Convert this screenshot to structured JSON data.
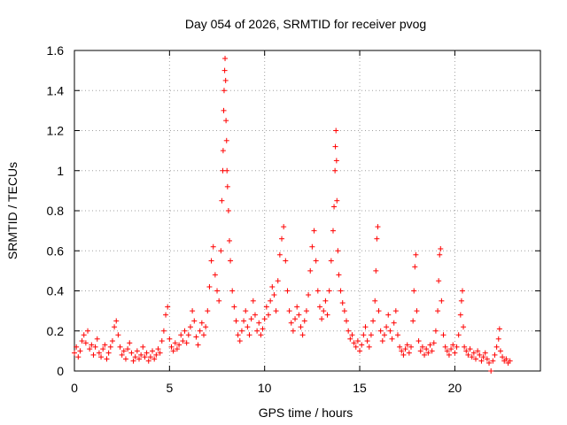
{
  "chart_data": {
    "type": "scatter",
    "title": "Day 054 of 2026, SRMTID for receiver pvog",
    "xlabel": "GPS time / hours",
    "ylabel": "SRMTID / TECUs",
    "xlim": [
      0,
      24.5
    ],
    "ylim": [
      0,
      1.6
    ],
    "xticks": [
      0,
      5,
      10,
      15,
      20
    ],
    "xtick_labels": [
      "0",
      "5",
      "10",
      "15",
      "20"
    ],
    "yticks": [
      0,
      0.2,
      0.4,
      0.6,
      0.8,
      1.0,
      1.2,
      1.4,
      1.6
    ],
    "ytick_labels": [
      "0",
      "0.2",
      "0.4",
      "0.6",
      "0.8",
      "1",
      "1.2",
      "1.4",
      "1.6"
    ],
    "grid": true,
    "marker": "+",
    "color": "#ff0000",
    "series": [
      {
        "name": "SRMTID",
        "points": [
          [
            0.0,
            0.09
          ],
          [
            0.1,
            0.12
          ],
          [
            0.2,
            0.07
          ],
          [
            0.3,
            0.1
          ],
          [
            0.4,
            0.15
          ],
          [
            0.5,
            0.18
          ],
          [
            0.6,
            0.14
          ],
          [
            0.7,
            0.2
          ],
          [
            0.8,
            0.11
          ],
          [
            0.9,
            0.13
          ],
          [
            1.0,
            0.08
          ],
          [
            1.1,
            0.12
          ],
          [
            1.2,
            0.16
          ],
          [
            1.3,
            0.09
          ],
          [
            1.4,
            0.07
          ],
          [
            1.5,
            0.11
          ],
          [
            1.6,
            0.13
          ],
          [
            1.7,
            0.06
          ],
          [
            1.8,
            0.09
          ],
          [
            1.9,
            0.12
          ],
          [
            2.0,
            0.15
          ],
          [
            2.1,
            0.22
          ],
          [
            2.2,
            0.25
          ],
          [
            2.3,
            0.18
          ],
          [
            2.4,
            0.12
          ],
          [
            2.5,
            0.08
          ],
          [
            2.6,
            0.1
          ],
          [
            2.7,
            0.06
          ],
          [
            2.8,
            0.11
          ],
          [
            2.9,
            0.14
          ],
          [
            3.0,
            0.09
          ],
          [
            3.1,
            0.05
          ],
          [
            3.2,
            0.07
          ],
          [
            3.3,
            0.1
          ],
          [
            3.4,
            0.06
          ],
          [
            3.5,
            0.08
          ],
          [
            3.6,
            0.12
          ],
          [
            3.7,
            0.07
          ],
          [
            3.8,
            0.09
          ],
          [
            3.9,
            0.05
          ],
          [
            4.0,
            0.07
          ],
          [
            4.1,
            0.1
          ],
          [
            4.2,
            0.06
          ],
          [
            4.3,
            0.08
          ],
          [
            4.4,
            0.11
          ],
          [
            4.5,
            0.09
          ],
          [
            4.6,
            0.15
          ],
          [
            4.7,
            0.2
          ],
          [
            4.8,
            0.28
          ],
          [
            4.9,
            0.32
          ],
          [
            5.0,
            0.16
          ],
          [
            5.1,
            0.12
          ],
          [
            5.2,
            0.1
          ],
          [
            5.3,
            0.14
          ],
          [
            5.4,
            0.11
          ],
          [
            5.5,
            0.13
          ],
          [
            5.6,
            0.18
          ],
          [
            5.7,
            0.15
          ],
          [
            5.8,
            0.2
          ],
          [
            5.9,
            0.14
          ],
          [
            6.0,
            0.18
          ],
          [
            6.1,
            0.22
          ],
          [
            6.2,
            0.3
          ],
          [
            6.3,
            0.25
          ],
          [
            6.4,
            0.17
          ],
          [
            6.5,
            0.13
          ],
          [
            6.6,
            0.2
          ],
          [
            6.7,
            0.24
          ],
          [
            6.8,
            0.18
          ],
          [
            6.9,
            0.22
          ],
          [
            7.0,
            0.3
          ],
          [
            7.1,
            0.42
          ],
          [
            7.2,
            0.55
          ],
          [
            7.3,
            0.62
          ],
          [
            7.4,
            0.48
          ],
          [
            7.5,
            0.4
          ],
          [
            7.6,
            0.35
          ],
          [
            7.7,
            0.6
          ],
          [
            7.75,
            0.85
          ],
          [
            7.8,
            1.0
          ],
          [
            7.82,
            1.1
          ],
          [
            7.85,
            1.3
          ],
          [
            7.87,
            1.4
          ],
          [
            7.9,
            1.5
          ],
          [
            7.92,
            1.56
          ],
          [
            7.95,
            1.45
          ],
          [
            7.97,
            1.25
          ],
          [
            8.0,
            1.15
          ],
          [
            8.02,
            1.0
          ],
          [
            8.05,
            0.92
          ],
          [
            8.1,
            0.8
          ],
          [
            8.15,
            0.65
          ],
          [
            8.2,
            0.55
          ],
          [
            8.3,
            0.4
          ],
          [
            8.4,
            0.32
          ],
          [
            8.5,
            0.25
          ],
          [
            8.6,
            0.18
          ],
          [
            8.7,
            0.15
          ],
          [
            8.8,
            0.2
          ],
          [
            8.9,
            0.25
          ],
          [
            9.0,
            0.3
          ],
          [
            9.1,
            0.22
          ],
          [
            9.2,
            0.18
          ],
          [
            9.3,
            0.26
          ],
          [
            9.4,
            0.35
          ],
          [
            9.5,
            0.28
          ],
          [
            9.6,
            0.2
          ],
          [
            9.7,
            0.24
          ],
          [
            9.8,
            0.18
          ],
          [
            9.9,
            0.21
          ],
          [
            10.0,
            0.26
          ],
          [
            10.1,
            0.32
          ],
          [
            10.2,
            0.28
          ],
          [
            10.3,
            0.35
          ],
          [
            10.4,
            0.42
          ],
          [
            10.5,
            0.38
          ],
          [
            10.6,
            0.3
          ],
          [
            10.7,
            0.45
          ],
          [
            10.8,
            0.58
          ],
          [
            10.9,
            0.66
          ],
          [
            11.0,
            0.72
          ],
          [
            11.1,
            0.55
          ],
          [
            11.2,
            0.4
          ],
          [
            11.3,
            0.3
          ],
          [
            11.4,
            0.24
          ],
          [
            11.5,
            0.2
          ],
          [
            11.6,
            0.26
          ],
          [
            11.7,
            0.32
          ],
          [
            11.8,
            0.28
          ],
          [
            11.9,
            0.22
          ],
          [
            12.0,
            0.18
          ],
          [
            12.1,
            0.25
          ],
          [
            12.2,
            0.3
          ],
          [
            12.3,
            0.38
          ],
          [
            12.4,
            0.5
          ],
          [
            12.5,
            0.62
          ],
          [
            12.6,
            0.7
          ],
          [
            12.7,
            0.55
          ],
          [
            12.8,
            0.4
          ],
          [
            12.9,
            0.32
          ],
          [
            13.0,
            0.26
          ],
          [
            13.1,
            0.3
          ],
          [
            13.2,
            0.35
          ],
          [
            13.3,
            0.28
          ],
          [
            13.4,
            0.4
          ],
          [
            13.5,
            0.55
          ],
          [
            13.6,
            0.7
          ],
          [
            13.65,
            0.82
          ],
          [
            13.7,
            1.0
          ],
          [
            13.72,
            1.12
          ],
          [
            13.75,
            1.2
          ],
          [
            13.78,
            1.05
          ],
          [
            13.8,
            0.85
          ],
          [
            13.85,
            0.6
          ],
          [
            13.9,
            0.48
          ],
          [
            14.0,
            0.4
          ],
          [
            14.1,
            0.34
          ],
          [
            14.2,
            0.3
          ],
          [
            14.3,
            0.25
          ],
          [
            14.4,
            0.2
          ],
          [
            14.5,
            0.16
          ],
          [
            14.6,
            0.18
          ],
          [
            14.7,
            0.14
          ],
          [
            14.8,
            0.12
          ],
          [
            14.9,
            0.15
          ],
          [
            15.0,
            0.1
          ],
          [
            15.1,
            0.13
          ],
          [
            15.2,
            0.18
          ],
          [
            15.3,
            0.22
          ],
          [
            15.4,
            0.15
          ],
          [
            15.5,
            0.12
          ],
          [
            15.6,
            0.18
          ],
          [
            15.7,
            0.25
          ],
          [
            15.8,
            0.35
          ],
          [
            15.85,
            0.5
          ],
          [
            15.9,
            0.66
          ],
          [
            15.95,
            0.72
          ],
          [
            16.0,
            0.3
          ],
          [
            16.1,
            0.2
          ],
          [
            16.2,
            0.15
          ],
          [
            16.3,
            0.18
          ],
          [
            16.4,
            0.22
          ],
          [
            16.5,
            0.28
          ],
          [
            16.6,
            0.2
          ],
          [
            16.7,
            0.16
          ],
          [
            16.8,
            0.24
          ],
          [
            16.9,
            0.3
          ],
          [
            17.0,
            0.18
          ],
          [
            17.1,
            0.12
          ],
          [
            17.2,
            0.1
          ],
          [
            17.3,
            0.08
          ],
          [
            17.4,
            0.11
          ],
          [
            17.5,
            0.13
          ],
          [
            17.6,
            0.09
          ],
          [
            17.7,
            0.12
          ],
          [
            17.8,
            0.25
          ],
          [
            17.85,
            0.4
          ],
          [
            17.9,
            0.52
          ],
          [
            17.95,
            0.58
          ],
          [
            18.0,
            0.3
          ],
          [
            18.1,
            0.15
          ],
          [
            18.2,
            0.1
          ],
          [
            18.3,
            0.12
          ],
          [
            18.4,
            0.08
          ],
          [
            18.5,
            0.11
          ],
          [
            18.6,
            0.09
          ],
          [
            18.7,
            0.13
          ],
          [
            18.8,
            0.1
          ],
          [
            18.9,
            0.14
          ],
          [
            19.0,
            0.2
          ],
          [
            19.1,
            0.3
          ],
          [
            19.15,
            0.45
          ],
          [
            19.2,
            0.58
          ],
          [
            19.25,
            0.61
          ],
          [
            19.3,
            0.35
          ],
          [
            19.4,
            0.18
          ],
          [
            19.5,
            0.12
          ],
          [
            19.6,
            0.1
          ],
          [
            19.7,
            0.08
          ],
          [
            19.8,
            0.11
          ],
          [
            19.9,
            0.13
          ],
          [
            20.0,
            0.09
          ],
          [
            20.1,
            0.12
          ],
          [
            20.2,
            0.18
          ],
          [
            20.3,
            0.28
          ],
          [
            20.35,
            0.35
          ],
          [
            20.4,
            0.4
          ],
          [
            20.45,
            0.22
          ],
          [
            20.5,
            0.12
          ],
          [
            20.6,
            0.1
          ],
          [
            20.7,
            0.08
          ],
          [
            20.8,
            0.11
          ],
          [
            20.9,
            0.07
          ],
          [
            21.0,
            0.09
          ],
          [
            21.1,
            0.06
          ],
          [
            21.2,
            0.1
          ],
          [
            21.3,
            0.08
          ],
          [
            21.4,
            0.05
          ],
          [
            21.5,
            0.07
          ],
          [
            21.6,
            0.09
          ],
          [
            21.7,
            0.06
          ],
          [
            21.8,
            0.04
          ],
          [
            21.9,
            0.0
          ],
          [
            22.0,
            0.05
          ],
          [
            22.1,
            0.08
          ],
          [
            22.2,
            0.12
          ],
          [
            22.3,
            0.16
          ],
          [
            22.35,
            0.21
          ],
          [
            22.4,
            0.1
          ],
          [
            22.5,
            0.07
          ],
          [
            22.6,
            0.05
          ],
          [
            22.7,
            0.06
          ],
          [
            22.8,
            0.04
          ],
          [
            22.9,
            0.05
          ]
        ]
      }
    ]
  }
}
